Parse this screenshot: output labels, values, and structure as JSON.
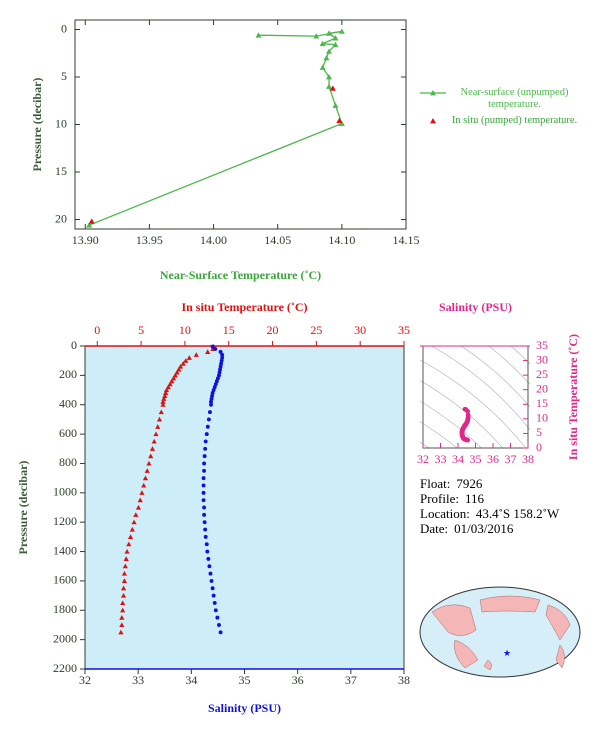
{
  "chart_data": [
    {
      "type": "line",
      "x_label": "Near-Surface Temperature (˚C)",
      "y_label": "Pressure (decibar)",
      "xlim": [
        13.892,
        14.15
      ],
      "xticks": [
        {
          "value": 13.9,
          "label": "13.90"
        },
        13.95,
        {
          "value": 14.0,
          "label": "14.00"
        },
        14.05,
        {
          "value": 14.1,
          "label": "14.10"
        },
        14.15
      ],
      "ylim": [
        -1,
        21
      ],
      "y_inverted": true,
      "yticks": [
        0,
        5,
        10,
        15,
        20
      ],
      "legend": "right",
      "series": [
        {
          "name": "Near-surface (unpumped) temperature.",
          "color": "#4cb84c",
          "marker": "triangle",
          "line": true,
          "values": [
            14.035,
            14.08,
            14.1,
            14.09,
            14.095,
            14.085,
            14.095,
            14.09,
            14.088,
            14.085,
            14.09,
            14.09,
            14.095,
            14.1,
            13.903
          ],
          "y": [
            0.6,
            0.7,
            0.2,
            0.4,
            0.9,
            1.5,
            1.6,
            2.3,
            3.0,
            4.0,
            5.0,
            6.0,
            8.0,
            9.9,
            20.6
          ]
        },
        {
          "name": "In situ (pumped) temperature.",
          "color": "#e01010",
          "marker": "triangle",
          "line": false,
          "values": [
            14.093,
            14.098,
            13.905
          ],
          "y": [
            6.2,
            9.6,
            20.2
          ]
        }
      ]
    },
    {
      "type": "profile",
      "x_label": "Salinity (PSU)",
      "x2_label": "In situ Temperature (˚C)",
      "y_label": "Pressure (decibar)",
      "xlim": [
        32,
        38
      ],
      "xticks": [
        32,
        33,
        34,
        35,
        36,
        37,
        38
      ],
      "x2lim": [
        -1.4,
        35
      ],
      "x2ticks": [
        0,
        5,
        10,
        15,
        20,
        25,
        30,
        35
      ],
      "ylim": [
        0,
        2200
      ],
      "y_inverted": true,
      "yticks": [
        0,
        200,
        400,
        600,
        800,
        1000,
        1200,
        1400,
        1600,
        1800,
        2000,
        2200
      ],
      "background": "#cdeef8",
      "y": [
        4,
        20,
        40,
        60,
        80,
        100,
        120,
        140,
        160,
        180,
        200,
        220,
        240,
        260,
        280,
        300,
        320,
        340,
        360,
        380,
        400,
        450,
        500,
        550,
        600,
        650,
        700,
        750,
        800,
        850,
        900,
        950,
        1000,
        1050,
        1100,
        1150,
        1200,
        1250,
        1300,
        1350,
        1400,
        1450,
        1500,
        1550,
        1600,
        1650,
        1700,
        1750,
        1800,
        1850,
        1900,
        1950
      ],
      "series": [
        {
          "color": "#e01010",
          "marker": "triangle",
          "axis": "x2",
          "values": [
            13.3,
            13.2,
            12.6,
            11.3,
            10.5,
            10.1,
            9.8,
            9.5,
            9.3,
            9.1,
            8.9,
            8.7,
            8.5,
            8.3,
            8.1,
            7.9,
            7.8,
            7.7,
            7.6,
            7.5,
            7.5,
            7.3,
            7.1,
            6.9,
            6.7,
            6.5,
            6.3,
            6.1,
            5.9,
            5.7,
            5.5,
            5.3,
            5.1,
            4.9,
            4.7,
            4.4,
            4.2,
            4.0,
            3.8,
            3.6,
            3.4,
            3.3,
            3.2,
            3.1,
            3.1,
            3.0,
            3.0,
            2.9,
            2.9,
            2.8,
            2.8,
            2.7
          ]
        },
        {
          "color": "#1010e0",
          "marker": "circle",
          "axis": "x",
          "values": [
            34.4,
            34.45,
            34.55,
            34.58,
            34.58,
            34.57,
            34.56,
            34.55,
            34.54,
            34.53,
            34.52,
            34.5,
            34.48,
            34.46,
            34.44,
            34.42,
            34.4,
            34.39,
            34.38,
            34.37,
            34.37,
            34.35,
            34.33,
            34.31,
            34.29,
            34.27,
            34.26,
            34.25,
            34.24,
            34.24,
            34.23,
            34.23,
            34.23,
            34.23,
            34.24,
            34.24,
            34.25,
            34.26,
            34.27,
            34.29,
            34.3,
            34.32,
            34.34,
            34.36,
            34.38,
            34.4,
            34.42,
            34.44,
            34.46,
            34.49,
            34.52,
            34.55
          ]
        }
      ]
    },
    {
      "type": "ts",
      "x_label": "Salinity (PSU)",
      "y_label": "In situ Temperature (˚C)",
      "xlim": [
        32,
        38
      ],
      "xticks": [
        32,
        33,
        34,
        35,
        36,
        37,
        38
      ],
      "ylim": [
        0,
        35
      ],
      "yticks": [
        0,
        5,
        10,
        15,
        20,
        25,
        30,
        35
      ],
      "color": "#e0288a"
    }
  ],
  "float_info": {
    "rows": [
      [
        "Float:",
        "7926"
      ],
      [
        "Profile:",
        "116"
      ],
      [
        "Location:",
        "43.4˚S  158.2˚W"
      ],
      [
        "Date:",
        "01/03/2016"
      ]
    ]
  }
}
